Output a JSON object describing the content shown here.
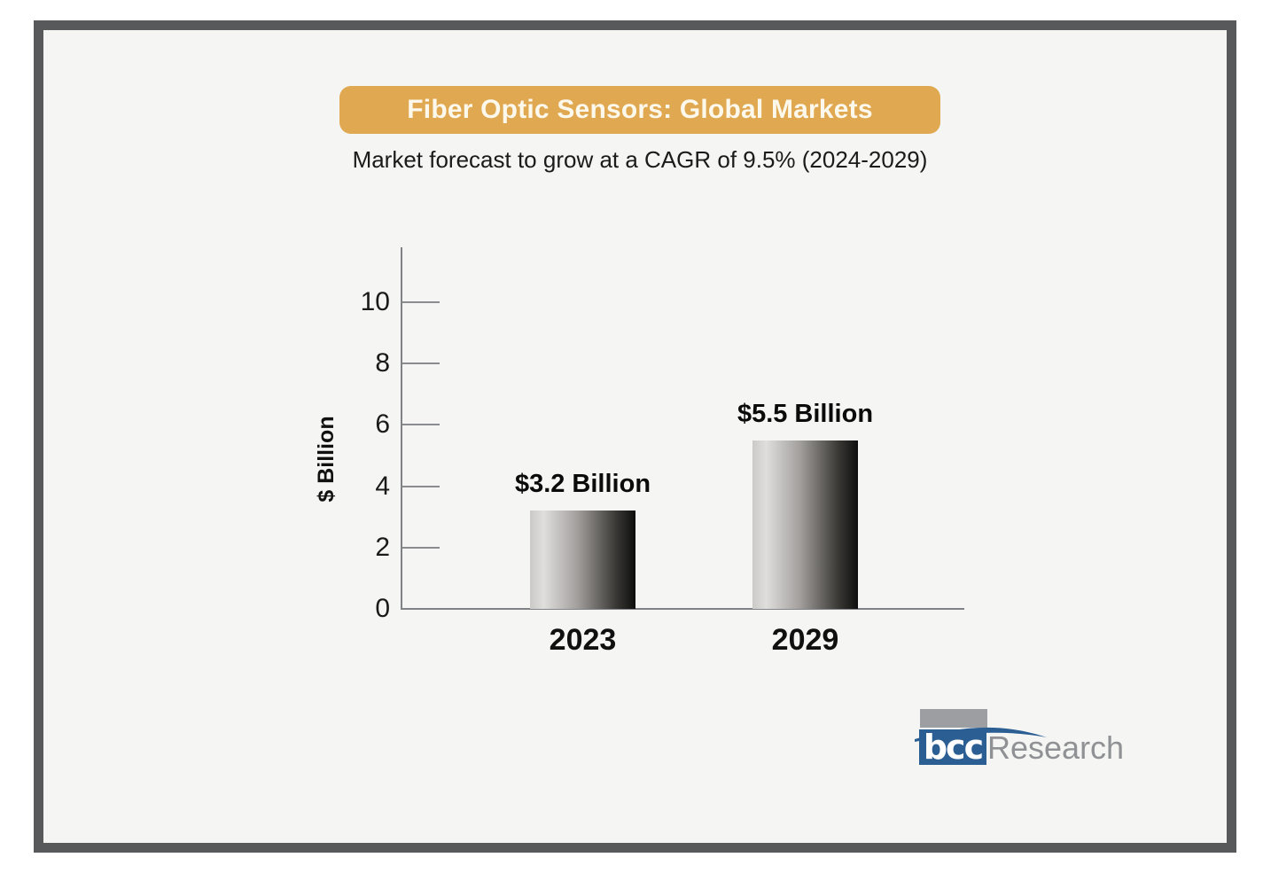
{
  "frame": {
    "border_color": "#58595b",
    "background_color": "#f5f5f3"
  },
  "banner": {
    "title": "Fiber Optic Sensors: Global Markets",
    "bg_color": "#dfa851",
    "text_color": "#fdf8ec"
  },
  "subtitle": "Market forecast to grow at a CAGR of 9.5% (2024-2029)",
  "chart_data": {
    "type": "bar",
    "title": "Fiber Optic Sensors: Global Markets",
    "subtitle": "Market forecast to grow at a CAGR of 9.5% (2024-2029)",
    "categories": [
      "2023",
      "2029"
    ],
    "values": [
      3.2,
      5.5
    ],
    "bar_labels": [
      "$3.2 Billion",
      "$5.5 Billion"
    ],
    "xlabel": "",
    "ylabel": "$ Billion",
    "yticks": [
      0,
      2,
      4,
      6,
      8,
      10
    ],
    "ylim": [
      0,
      11.8
    ],
    "grid": false,
    "legend": false,
    "bar_gradient": [
      "#cbc9c8",
      "#e0dedd",
      "#a29f9d",
      "#393734",
      "#0d0d0d"
    ],
    "axis_color": "#808285",
    "label_color": "#0b0b0b"
  },
  "logo": {
    "box_text": "bcc",
    "name_text": "Research",
    "blue_color": "#2b5e93",
    "gray_color": "#9c9ea1",
    "name_color": "#8f9194"
  }
}
